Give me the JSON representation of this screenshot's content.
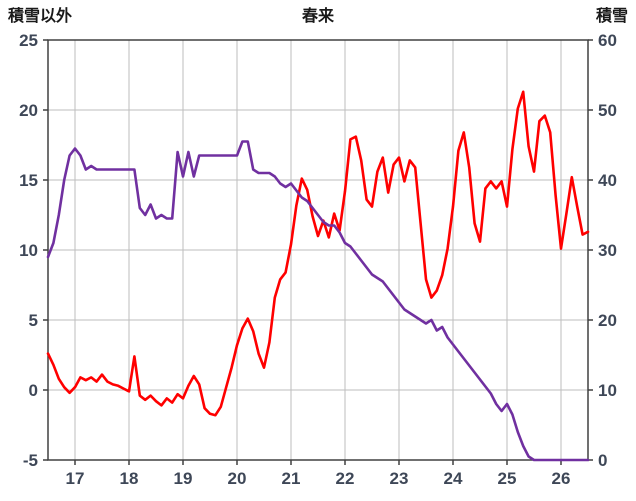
{
  "chart_data": {
    "type": "line",
    "title": "春来",
    "left_axis": {
      "label": "積雪以外",
      "min": -5,
      "max": 25,
      "ticks": [
        25,
        20,
        15,
        10,
        5,
        0,
        -5
      ]
    },
    "right_axis": {
      "label": "積雪",
      "min": 0,
      "max": 60,
      "ticks": [
        60,
        50,
        40,
        30,
        20,
        10,
        0
      ]
    },
    "x_axis": {
      "min": 16.5,
      "max": 26.5,
      "ticks": [
        17,
        18,
        19,
        20,
        21,
        22,
        23,
        24,
        25,
        26
      ]
    },
    "grid": true,
    "legend": "none",
    "colors": {
      "grid": "#BDBDBD",
      "border": "#404040",
      "red_series": "#FF0000",
      "purple_series": "#7030A0"
    },
    "series": [
      {
        "name": "red-series",
        "axis": "left",
        "color": "#FF0000",
        "x_start": 16.5,
        "x_step": 0.1,
        "values": [
          2.6,
          1.8,
          0.8,
          0.2,
          -0.2,
          0.2,
          0.9,
          0.7,
          0.9,
          0.6,
          1.1,
          0.6,
          0.4,
          0.3,
          0.1,
          -0.1,
          2.4,
          -0.4,
          -0.7,
          -0.4,
          -0.8,
          -1.1,
          -0.6,
          -0.9,
          -0.3,
          -0.6,
          0.3,
          1.0,
          0.4,
          -1.3,
          -1.7,
          -1.8,
          -1.2,
          0.2,
          1.6,
          3.2,
          4.4,
          5.1,
          4.2,
          2.6,
          1.6,
          3.4,
          6.6,
          7.9,
          8.4,
          10.4,
          13.2,
          15.1,
          14.3,
          12.4,
          11.0,
          12.1,
          10.9,
          12.6,
          11.4,
          14.2,
          17.9,
          18.1,
          16.4,
          13.6,
          13.1,
          15.6,
          16.6,
          14.1,
          16.1,
          16.6,
          14.9,
          16.4,
          15.9,
          11.9,
          7.9,
          6.6,
          7.1,
          8.2,
          10.1,
          13.1,
          17.1,
          18.4,
          15.9,
          11.9,
          10.6,
          14.4,
          14.9,
          14.4,
          14.9,
          13.1,
          17.2,
          20.1,
          21.3,
          17.4,
          15.6,
          19.2,
          19.6,
          18.4,
          13.9,
          10.1,
          12.6,
          15.2,
          13.1,
          11.1,
          11.3
        ]
      },
      {
        "name": "purple-series",
        "axis": "right",
        "color": "#7030A0",
        "x_start": 16.5,
        "x_step": 0.1,
        "values": [
          29,
          31,
          35,
          40,
          43.5,
          44.5,
          43.5,
          41.5,
          42,
          41.5,
          41.5,
          41.5,
          41.5,
          41.5,
          41.5,
          41.5,
          41.5,
          36,
          35,
          36.5,
          34.5,
          35,
          34.5,
          34.5,
          44,
          40.5,
          44,
          40.5,
          43.5,
          43.5,
          43.5,
          43.5,
          43.5,
          43.5,
          43.5,
          43.5,
          45.5,
          45.5,
          41.5,
          41,
          41,
          41,
          40.5,
          39.5,
          39,
          39.5,
          38.5,
          37.5,
          37,
          36,
          35,
          34,
          33.5,
          33.5,
          32.5,
          31,
          30.5,
          29.5,
          28.5,
          27.5,
          26.5,
          26,
          25.5,
          24.5,
          23.5,
          22.5,
          21.5,
          21,
          20.5,
          20,
          19.5,
          20,
          18.5,
          19,
          17.5,
          16.5,
          15.5,
          14.5,
          13.5,
          12.5,
          11.5,
          10.5,
          9.5,
          8,
          7,
          8,
          6.5,
          4,
          2,
          0.5,
          0,
          0,
          0,
          0,
          0,
          0,
          0,
          0,
          0,
          0,
          0
        ]
      }
    ]
  }
}
